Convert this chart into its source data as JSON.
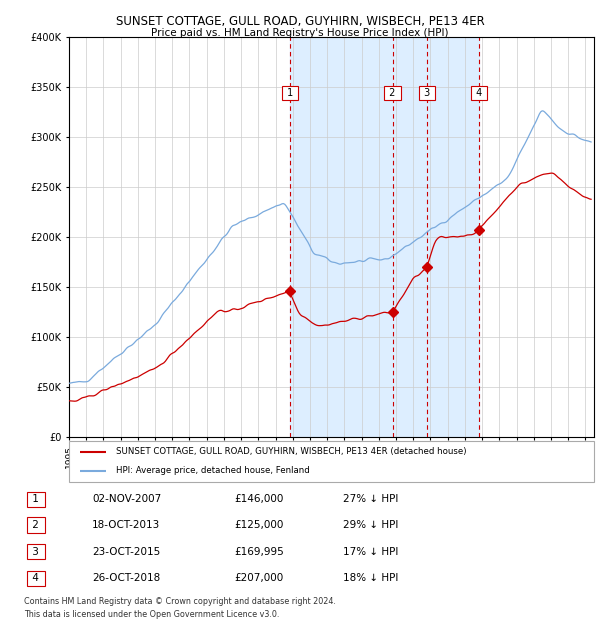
{
  "title": "SUNSET COTTAGE, GULL ROAD, GUYHIRN, WISBECH, PE13 4ER",
  "subtitle": "Price paid vs. HM Land Registry's House Price Index (HPI)",
  "legend_red": "SUNSET COTTAGE, GULL ROAD, GUYHIRN, WISBECH, PE13 4ER (detached house)",
  "legend_blue": "HPI: Average price, detached house, Fenland",
  "footer1": "Contains HM Land Registry data © Crown copyright and database right 2024.",
  "footer2": "This data is licensed under the Open Government Licence v3.0.",
  "transactions": [
    {
      "num": 1,
      "date": "02-NOV-2007",
      "price": 146000,
      "pct": "27% ↓ HPI",
      "year": 2007.84
    },
    {
      "num": 2,
      "date": "18-OCT-2013",
      "price": 125000,
      "pct": "29% ↓ HPI",
      "year": 2013.8
    },
    {
      "num": 3,
      "date": "23-OCT-2015",
      "price": 169995,
      "pct": "17% ↓ HPI",
      "year": 2015.81
    },
    {
      "num": 4,
      "date": "26-OCT-2018",
      "price": 207000,
      "pct": "18% ↓ HPI",
      "year": 2018.82
    }
  ],
  "hpi_color": "#7aaadd",
  "price_color": "#cc0000",
  "shade_color": "#ddeeff",
  "vline_color": "#cc0000",
  "background_color": "#ffffff",
  "grid_color": "#cccccc",
  "ylim": [
    0,
    400000
  ],
  "xlim_start": 1995.0,
  "xlim_end": 2025.5
}
